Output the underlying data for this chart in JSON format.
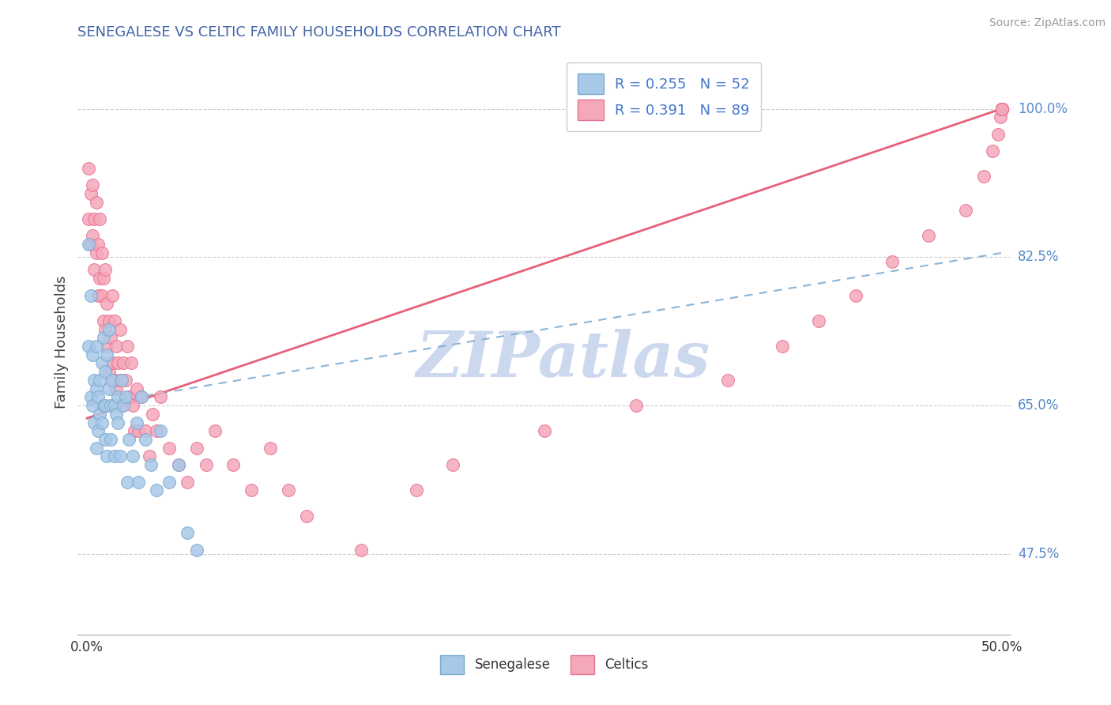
{
  "title": "SENEGALESE VS CELTIC FAMILY HOUSEHOLDS CORRELATION CHART",
  "source": "Source: ZipAtlas.com",
  "ylabel": "Family Households",
  "xlim": [
    -0.005,
    0.505
  ],
  "ylim": [
    0.38,
    1.07
  ],
  "xticks": [
    0.0,
    0.1,
    0.2,
    0.3,
    0.4,
    0.5
  ],
  "xtick_labels": [
    "0.0%",
    "",
    "",
    "",
    "",
    "50.0%"
  ],
  "ytick_vals": [
    0.475,
    0.65,
    0.825,
    1.0
  ],
  "ytick_labels": [
    "47.5%",
    "65.0%",
    "82.5%",
    "100.0%"
  ],
  "legend_r1": "R = 0.255   N = 52",
  "legend_r2": "R = 0.391   N = 89",
  "sen_color": "#a8c8e8",
  "cel_color": "#f5a8ba",
  "sen_edge": "#7aaad0",
  "cel_edge": "#e87090",
  "reg_blue": "#8ab4d8",
  "reg_pink": "#e8607a",
  "watermark_color": "#ccd8ee",
  "senegalese_x": [
    0.001,
    0.001,
    0.002,
    0.002,
    0.003,
    0.003,
    0.004,
    0.004,
    0.005,
    0.005,
    0.005,
    0.006,
    0.006,
    0.007,
    0.007,
    0.008,
    0.008,
    0.009,
    0.009,
    0.01,
    0.01,
    0.01,
    0.011,
    0.011,
    0.012,
    0.012,
    0.013,
    0.013,
    0.014,
    0.015,
    0.015,
    0.016,
    0.017,
    0.017,
    0.018,
    0.019,
    0.02,
    0.021,
    0.022,
    0.023,
    0.025,
    0.027,
    0.028,
    0.03,
    0.032,
    0.035,
    0.038,
    0.04,
    0.045,
    0.05,
    0.055,
    0.06
  ],
  "senegalese_y": [
    0.84,
    0.72,
    0.78,
    0.66,
    0.71,
    0.65,
    0.68,
    0.63,
    0.72,
    0.67,
    0.6,
    0.66,
    0.62,
    0.68,
    0.64,
    0.7,
    0.63,
    0.73,
    0.65,
    0.69,
    0.65,
    0.61,
    0.71,
    0.59,
    0.67,
    0.74,
    0.65,
    0.61,
    0.68,
    0.65,
    0.59,
    0.64,
    0.66,
    0.63,
    0.59,
    0.68,
    0.65,
    0.66,
    0.56,
    0.61,
    0.59,
    0.63,
    0.56,
    0.66,
    0.61,
    0.58,
    0.55,
    0.62,
    0.56,
    0.58,
    0.5,
    0.48
  ],
  "celtics_x": [
    0.001,
    0.001,
    0.002,
    0.002,
    0.003,
    0.003,
    0.004,
    0.004,
    0.005,
    0.005,
    0.006,
    0.006,
    0.007,
    0.007,
    0.008,
    0.008,
    0.009,
    0.009,
    0.01,
    0.01,
    0.011,
    0.011,
    0.012,
    0.012,
    0.013,
    0.014,
    0.014,
    0.015,
    0.015,
    0.016,
    0.016,
    0.017,
    0.018,
    0.018,
    0.019,
    0.02,
    0.021,
    0.022,
    0.023,
    0.024,
    0.025,
    0.026,
    0.027,
    0.028,
    0.03,
    0.032,
    0.034,
    0.036,
    0.038,
    0.04,
    0.045,
    0.05,
    0.055,
    0.06,
    0.065,
    0.07,
    0.08,
    0.09,
    0.1,
    0.11,
    0.12,
    0.15,
    0.18,
    0.2,
    0.25,
    0.3,
    0.35,
    0.38,
    0.4,
    0.42,
    0.44,
    0.46,
    0.48,
    0.49,
    0.495,
    0.498,
    0.499,
    0.5,
    0.5,
    0.5,
    0.5,
    0.5,
    0.5,
    0.5,
    0.5,
    0.5,
    0.5,
    0.5,
    0.5
  ],
  "celtics_y": [
    0.93,
    0.87,
    0.9,
    0.84,
    0.91,
    0.85,
    0.87,
    0.81,
    0.89,
    0.83,
    0.78,
    0.84,
    0.87,
    0.8,
    0.83,
    0.78,
    0.75,
    0.8,
    0.81,
    0.74,
    0.77,
    0.72,
    0.75,
    0.69,
    0.73,
    0.78,
    0.7,
    0.75,
    0.68,
    0.72,
    0.67,
    0.7,
    0.74,
    0.68,
    0.65,
    0.7,
    0.68,
    0.72,
    0.66,
    0.7,
    0.65,
    0.62,
    0.67,
    0.62,
    0.66,
    0.62,
    0.59,
    0.64,
    0.62,
    0.66,
    0.6,
    0.58,
    0.56,
    0.6,
    0.58,
    0.62,
    0.58,
    0.55,
    0.6,
    0.55,
    0.52,
    0.48,
    0.55,
    0.58,
    0.62,
    0.65,
    0.68,
    0.72,
    0.75,
    0.78,
    0.82,
    0.85,
    0.88,
    0.92,
    0.95,
    0.97,
    0.99,
    1.0,
    1.0,
    1.0,
    1.0,
    1.0,
    1.0,
    1.0,
    1.0,
    1.0,
    1.0,
    1.0,
    1.0
  ]
}
